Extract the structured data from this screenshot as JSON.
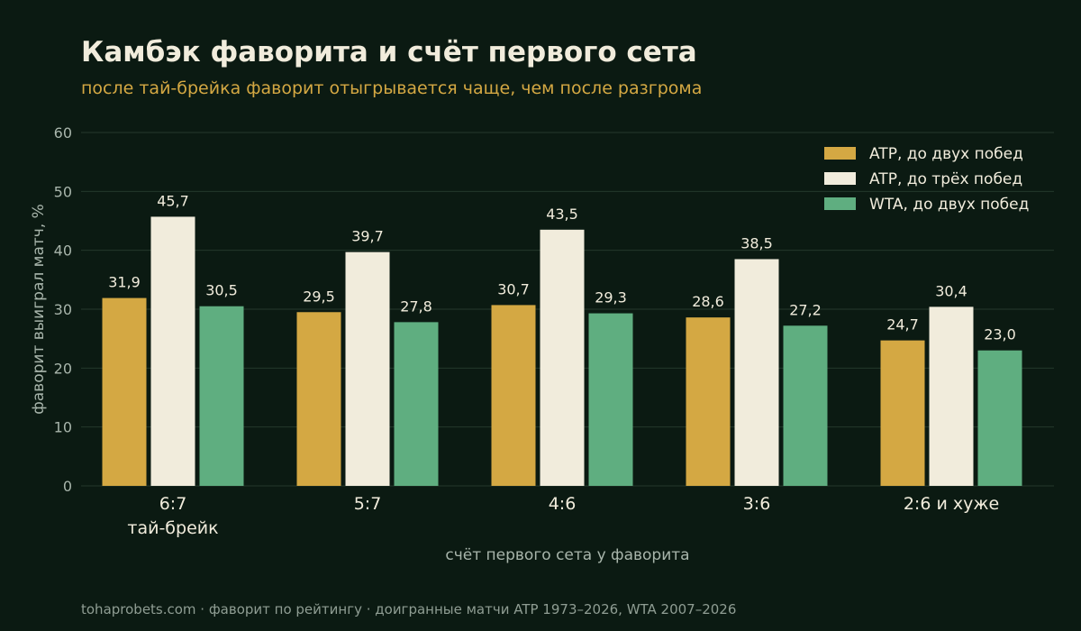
{
  "title": "Камбэк фаворита и счёт первого сета",
  "subtitle": "после тай-брейка фаворит отыгрывается чаще, чем после разгрома",
  "footer": "tohaprobets.com · фаворит по рейтингу · доигранные матчи ATP 1973–2026, WTA 2007–2026",
  "colors": {
    "background": "#0b1a12",
    "grid": "#24382c",
    "axis_text": "#a8b5ab",
    "label_text": "#f1ecdc",
    "series": [
      "#d4a843",
      "#f1ecdc",
      "#5fae80"
    ]
  },
  "chart_data": {
    "type": "bar",
    "categories": [
      "6:7\nтай-брейк",
      "5:7",
      "4:6",
      "3:6",
      "2:6 и хуже"
    ],
    "series": [
      {
        "name": "ATP, до двух побед",
        "values": [
          31.9,
          29.5,
          30.7,
          28.6,
          24.7
        ]
      },
      {
        "name": "ATP, до трёх побед",
        "values": [
          45.7,
          39.7,
          43.5,
          38.5,
          30.4
        ]
      },
      {
        "name": "WTA, до двух побед",
        "values": [
          30.5,
          27.8,
          29.3,
          27.2,
          23.0
        ]
      }
    ],
    "xlabel": "счёт первого сета у фаворита",
    "ylabel": "фаворит выиграл матч, %",
    "ylim": [
      0,
      60
    ],
    "yticks": [
      0,
      10,
      20,
      30,
      40,
      50,
      60
    ],
    "grid": true,
    "legend_position": "top-right"
  }
}
